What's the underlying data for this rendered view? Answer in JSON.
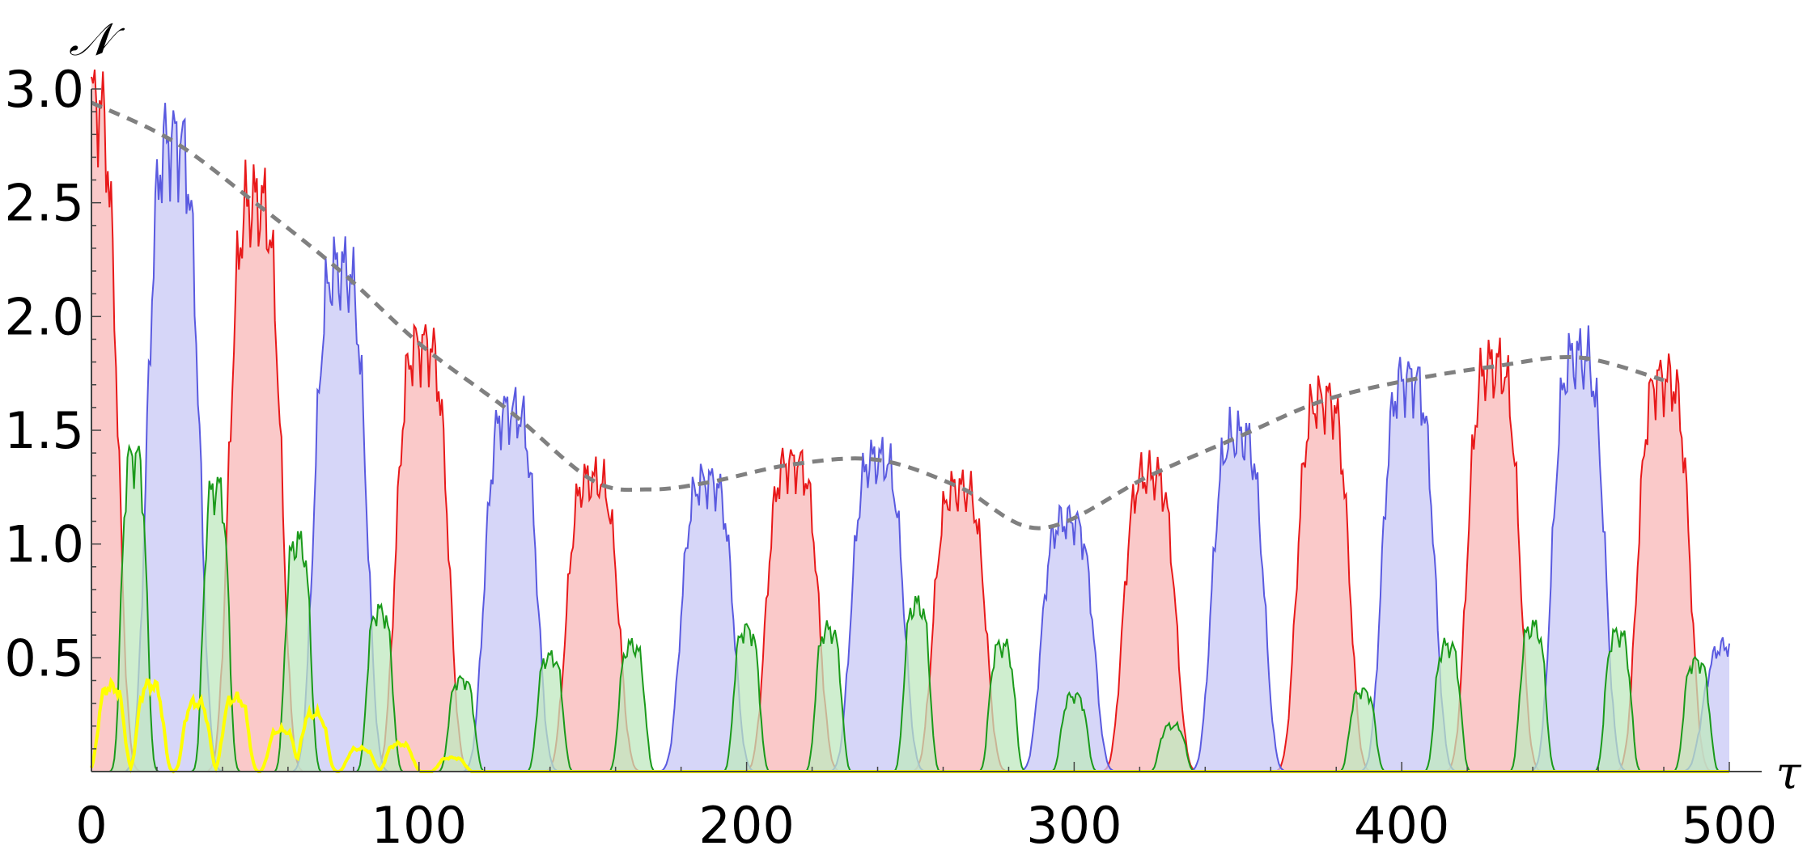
{
  "chart_data": {
    "type": "area",
    "title": "",
    "xlabel": "τ",
    "ylabel": "𝒩",
    "xlim": [
      0,
      500
    ],
    "ylim": [
      0,
      3.0
    ],
    "xticks": [
      0,
      100,
      200,
      300,
      400,
      500
    ],
    "xtick_labels": [
      "0",
      "100",
      "200",
      "300",
      "400",
      "500"
    ],
    "yticks": [
      0.5,
      1.0,
      1.5,
      2.0,
      2.5,
      3.0
    ],
    "ytick_labels": [
      "0.5",
      "1.0",
      "1.5",
      "2.0",
      "2.5",
      "3.0"
    ],
    "grid": false,
    "legend": "none",
    "series": [
      {
        "color": "#e8191a",
        "fill": "#f8b7b7",
        "filled": true,
        "peaks": [
          [
            0,
            2.94
          ],
          [
            50,
            2.5
          ],
          [
            101,
            1.87
          ],
          [
            153,
            1.28
          ],
          [
            214,
            1.35
          ],
          [
            265,
            1.24
          ],
          [
            323,
            1.3
          ],
          [
            376,
            1.63
          ],
          [
            428,
            1.78
          ],
          [
            480,
            1.72
          ]
        ]
      },
      {
        "color": "#5a5ae0",
        "fill": "#c8c8f6",
        "filled": true,
        "peaks": [
          [
            25,
            2.77
          ],
          [
            76,
            2.2
          ],
          [
            128,
            1.58
          ],
          [
            188,
            1.27
          ],
          [
            240,
            1.37
          ],
          [
            298,
            1.1
          ],
          [
            350,
            1.47
          ],
          [
            402,
            1.72
          ],
          [
            454,
            1.82
          ],
          [
            500,
            0.55
          ]
        ]
      },
      {
        "color": "#1a9a1a",
        "fill": "#bfe8bf",
        "filled": true,
        "peaks": [
          [
            13,
            1.38
          ],
          [
            38,
            1.24
          ],
          [
            63,
            1.0
          ],
          [
            88,
            0.7
          ],
          [
            113,
            0.4
          ],
          [
            140,
            0.5
          ],
          [
            165,
            0.55
          ],
          [
            200,
            0.62
          ],
          [
            225,
            0.62
          ],
          [
            252,
            0.73
          ],
          [
            278,
            0.55
          ],
          [
            300,
            0.33
          ],
          [
            330,
            0.2
          ],
          [
            388,
            0.35
          ],
          [
            414,
            0.55
          ],
          [
            440,
            0.63
          ],
          [
            466,
            0.6
          ],
          [
            490,
            0.48
          ]
        ]
      },
      {
        "color": "#ffff00",
        "fill": "none",
        "filled": false,
        "peaks": [
          [
            6,
            0.37
          ],
          [
            18,
            0.38
          ],
          [
            32,
            0.3
          ],
          [
            44,
            0.32
          ],
          [
            58,
            0.18
          ],
          [
            68,
            0.25
          ],
          [
            82,
            0.1
          ],
          [
            94,
            0.12
          ],
          [
            110,
            0.06
          ]
        ]
      }
    ],
    "envelope": {
      "color": "#808080",
      "style": "dashed",
      "x": [
        0,
        25,
        50,
        76,
        101,
        128,
        153,
        170,
        188,
        214,
        240,
        265,
        290,
        323,
        350,
        376,
        402,
        428,
        454,
        480
      ],
      "y": [
        2.94,
        2.77,
        2.5,
        2.2,
        1.87,
        1.58,
        1.28,
        1.24,
        1.27,
        1.35,
        1.37,
        1.25,
        1.07,
        1.3,
        1.47,
        1.63,
        1.72,
        1.78,
        1.82,
        1.72
      ]
    }
  }
}
